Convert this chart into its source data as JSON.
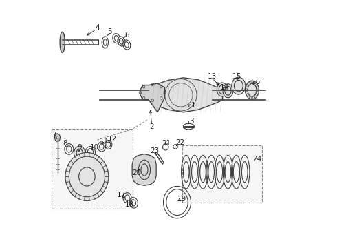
{
  "bg_color": "#ffffff",
  "title": "",
  "fig_width": 4.9,
  "fig_height": 3.6,
  "dpi": 100,
  "line_color": "#404040",
  "label_fontsize": 7.5,
  "label_color": "#222222",
  "diagram_color": "#606060"
}
